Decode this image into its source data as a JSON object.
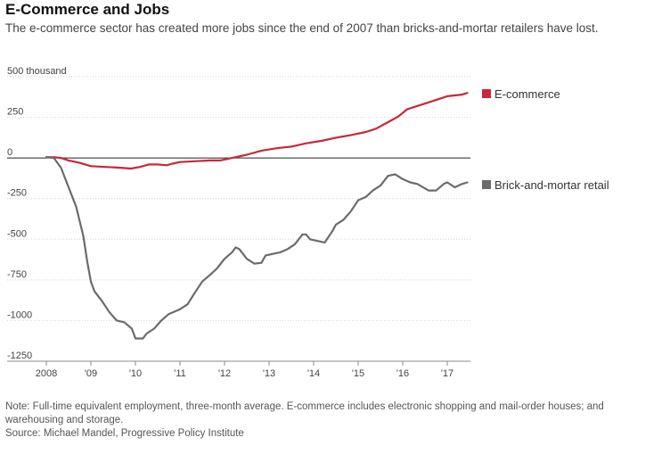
{
  "header": {
    "title": "E-Commerce and Jobs",
    "subtitle": "The e-commerce sector has created more jobs since the end of 2007 than bricks-and-mortar retailers have lost."
  },
  "footer": {
    "note": "Note: Full-time equivalent employment, three-month average. E-commerce includes electronic shopping and mail-order houses; and warehousing and storage.",
    "source": "Source: Michael Mandel, Progressive Policy Institute"
  },
  "chart_data": {
    "type": "line",
    "title": "E-Commerce and Jobs",
    "ylabel": "",
    "xlabel": "",
    "y_unit_label": "500 thousand",
    "ylim": [
      -1250,
      500
    ],
    "xlim": [
      2008.0,
      2017.5
    ],
    "y_ticks": [
      500,
      250,
      0,
      -250,
      -500,
      -750,
      -1000,
      -1250
    ],
    "y_tick_labels": [
      "500 thousand",
      "250",
      "0",
      "-250",
      "-500",
      "-750",
      "-1000",
      "-1250"
    ],
    "x_ticks": [
      2008,
      2009,
      2010,
      2011,
      2012,
      2013,
      2014,
      2015,
      2016,
      2017
    ],
    "x_tick_labels": [
      "2008",
      "'09",
      "'10",
      "'11",
      "'12",
      "'13",
      "'14",
      "'15",
      "'16",
      "'17"
    ],
    "grid": true,
    "legend": "right",
    "series": [
      {
        "name": "E-commerce",
        "color": "#c8283a",
        "points": [
          [
            2008.0,
            5
          ],
          [
            2008.17,
            5
          ],
          [
            2008.33,
            0
          ],
          [
            2008.5,
            -15
          ],
          [
            2008.75,
            -30
          ],
          [
            2009.0,
            -50
          ],
          [
            2009.33,
            -55
          ],
          [
            2009.67,
            -60
          ],
          [
            2009.9,
            -65
          ],
          [
            2010.1,
            -55
          ],
          [
            2010.3,
            -40
          ],
          [
            2010.5,
            -40
          ],
          [
            2010.7,
            -45
          ],
          [
            2010.83,
            -35
          ],
          [
            2011.0,
            -25
          ],
          [
            2011.33,
            -20
          ],
          [
            2011.67,
            -15
          ],
          [
            2011.9,
            -15
          ],
          [
            2012.17,
            0
          ],
          [
            2012.5,
            20
          ],
          [
            2012.83,
            45
          ],
          [
            2013.17,
            60
          ],
          [
            2013.5,
            70
          ],
          [
            2013.83,
            90
          ],
          [
            2014.17,
            105
          ],
          [
            2014.5,
            125
          ],
          [
            2014.83,
            140
          ],
          [
            2015.17,
            160
          ],
          [
            2015.4,
            180
          ],
          [
            2015.67,
            220
          ],
          [
            2015.9,
            255
          ],
          [
            2016.1,
            300
          ],
          [
            2016.33,
            320
          ],
          [
            2016.67,
            350
          ],
          [
            2017.0,
            380
          ],
          [
            2017.33,
            390
          ],
          [
            2017.45,
            400
          ]
        ]
      },
      {
        "name": "Brick-and-mortar retail",
        "color": "#6b6b6b",
        "points": [
          [
            2008.0,
            5
          ],
          [
            2008.17,
            0
          ],
          [
            2008.33,
            -60
          ],
          [
            2008.5,
            -180
          ],
          [
            2008.67,
            -300
          ],
          [
            2008.83,
            -480
          ],
          [
            2008.92,
            -640
          ],
          [
            2009.0,
            -760
          ],
          [
            2009.08,
            -820
          ],
          [
            2009.25,
            -880
          ],
          [
            2009.42,
            -950
          ],
          [
            2009.58,
            -1000
          ],
          [
            2009.75,
            -1010
          ],
          [
            2009.92,
            -1050
          ],
          [
            2010.0,
            -1110
          ],
          [
            2010.17,
            -1110
          ],
          [
            2010.25,
            -1080
          ],
          [
            2010.42,
            -1050
          ],
          [
            2010.58,
            -1000
          ],
          [
            2010.75,
            -960
          ],
          [
            2010.92,
            -940
          ],
          [
            2011.0,
            -930
          ],
          [
            2011.17,
            -900
          ],
          [
            2011.33,
            -830
          ],
          [
            2011.5,
            -760
          ],
          [
            2011.67,
            -720
          ],
          [
            2011.83,
            -680
          ],
          [
            2012.0,
            -620
          ],
          [
            2012.17,
            -580
          ],
          [
            2012.25,
            -550
          ],
          [
            2012.33,
            -560
          ],
          [
            2012.5,
            -620
          ],
          [
            2012.67,
            -650
          ],
          [
            2012.83,
            -645
          ],
          [
            2012.92,
            -600
          ],
          [
            2013.08,
            -590
          ],
          [
            2013.25,
            -580
          ],
          [
            2013.42,
            -560
          ],
          [
            2013.58,
            -530
          ],
          [
            2013.75,
            -470
          ],
          [
            2013.83,
            -470
          ],
          [
            2013.92,
            -500
          ],
          [
            2014.08,
            -510
          ],
          [
            2014.25,
            -520
          ],
          [
            2014.42,
            -450
          ],
          [
            2014.5,
            -410
          ],
          [
            2014.67,
            -380
          ],
          [
            2014.83,
            -330
          ],
          [
            2015.0,
            -260
          ],
          [
            2015.17,
            -240
          ],
          [
            2015.33,
            -200
          ],
          [
            2015.5,
            -170
          ],
          [
            2015.67,
            -110
          ],
          [
            2015.83,
            -100
          ],
          [
            2016.0,
            -130
          ],
          [
            2016.17,
            -150
          ],
          [
            2016.33,
            -160
          ],
          [
            2016.58,
            -200
          ],
          [
            2016.75,
            -200
          ],
          [
            2016.92,
            -160
          ],
          [
            2017.0,
            -150
          ],
          [
            2017.17,
            -180
          ],
          [
            2017.33,
            -160
          ],
          [
            2017.45,
            -150
          ]
        ]
      }
    ]
  }
}
